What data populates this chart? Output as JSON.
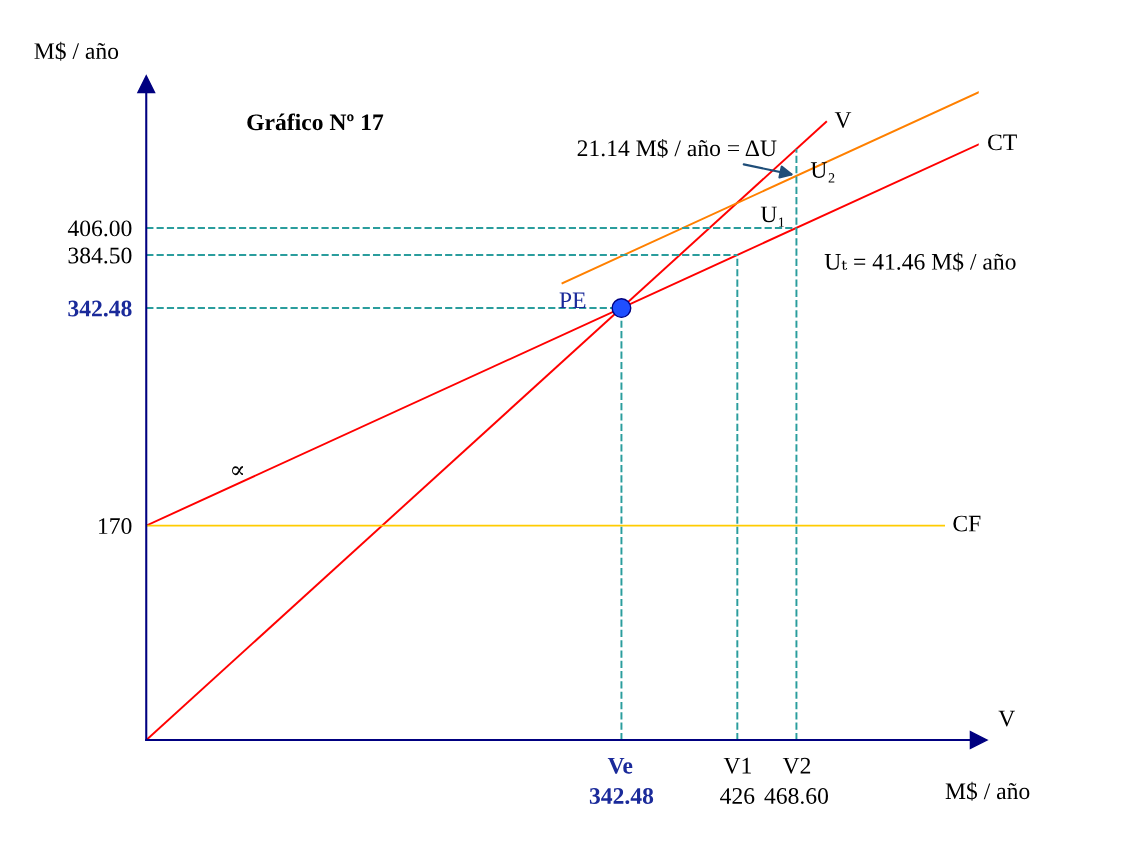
{
  "chart_data": {
    "type": "line",
    "title": "Gráfico Nº 17",
    "xlabel": "M$ / año",
    "ylabel": "M$ / año",
    "xlim": [
      0,
      600
    ],
    "ylim": [
      0,
      520
    ],
    "xticks": [
      342.48,
      426,
      {
        "value": 468.6,
        "label": "468.60"
      }
    ],
    "yticks": [
      170,
      {
        "value": 342.48,
        "label": "342.48"
      },
      {
        "value": 384.5,
        "label": "384.50"
      },
      {
        "value": 406,
        "label": "406.00"
      }
    ],
    "grid": false,
    "legend": false,
    "line_style": "solid",
    "marker": "none",
    "series": [
      {
        "name": "V",
        "color": "#ff0000",
        "x": [
          0,
          490
        ],
        "values": [
          0,
          490
        ]
      },
      {
        "name": "CT",
        "color": "#ff0000",
        "x": [
          0,
          600
        ],
        "values": [
          170,
          472.2
        ]
      },
      {
        "name": "CF",
        "color": "#ffcc00",
        "x": [
          0,
          575
        ],
        "values": [
          170,
          170
        ]
      },
      {
        "color": "#ff8000",
        "x": [
          300,
          600
        ],
        "values": [
          362.2,
          513.6
        ]
      },
      {
        "color": "#2a9d9d",
        "line_style": "dashed",
        "x": [
          0,
          468.6
        ],
        "values": [
          406,
          406
        ]
      },
      {
        "color": "#2a9d9d",
        "line_style": "dashed",
        "x": [
          0,
          426
        ],
        "values": [
          384.5,
          384.5
        ]
      },
      {
        "color": "#2a9d9d",
        "line_style": "dashed",
        "x": [
          0,
          342.48
        ],
        "values": [
          342.48,
          342.48
        ]
      },
      {
        "color": "#2a9d9d",
        "line_style": "dashed",
        "x": [
          342.48,
          342.48
        ],
        "values": [
          0,
          342.48
        ]
      },
      {
        "color": "#2a9d9d",
        "line_style": "dashed",
        "x": [
          426,
          426
        ],
        "values": [
          0,
          384.5
        ]
      },
      {
        "color": "#2a9d9d",
        "line_style": "dashed",
        "x": [
          468.6,
          468.6
        ],
        "values": [
          0,
          468.6
        ]
      },
      {
        "type": "scatter",
        "marker": "circle",
        "color": "#1f4fff",
        "x": [
          342.48
        ],
        "values": [
          342.48
        ]
      }
    ],
    "annotations": [
      {
        "text": "PE",
        "x": 342.48,
        "y": 342.48
      },
      {
        "text": "21.14 M$ / año = ΔU",
        "x": 468.6,
        "y": 447.6
      },
      {
        "text": "U₁",
        "x": 468.6,
        "y": 426
      },
      {
        "text": "U₂",
        "x": 468.6,
        "y": 437
      },
      {
        "text": "Uₜ = 41.46 M$ / año",
        "x": 468.6,
        "y": 406
      },
      "∝",
      {
        "text": "V",
        "x": 600,
        "y": 0
      },
      {
        "text": "Ve",
        "x": 342.48,
        "y": 0
      },
      {
        "text": "V1",
        "x": 426,
        "y": 0
      },
      {
        "text": "V2",
        "x": 468.6,
        "y": 0
      }
    ]
  }
}
